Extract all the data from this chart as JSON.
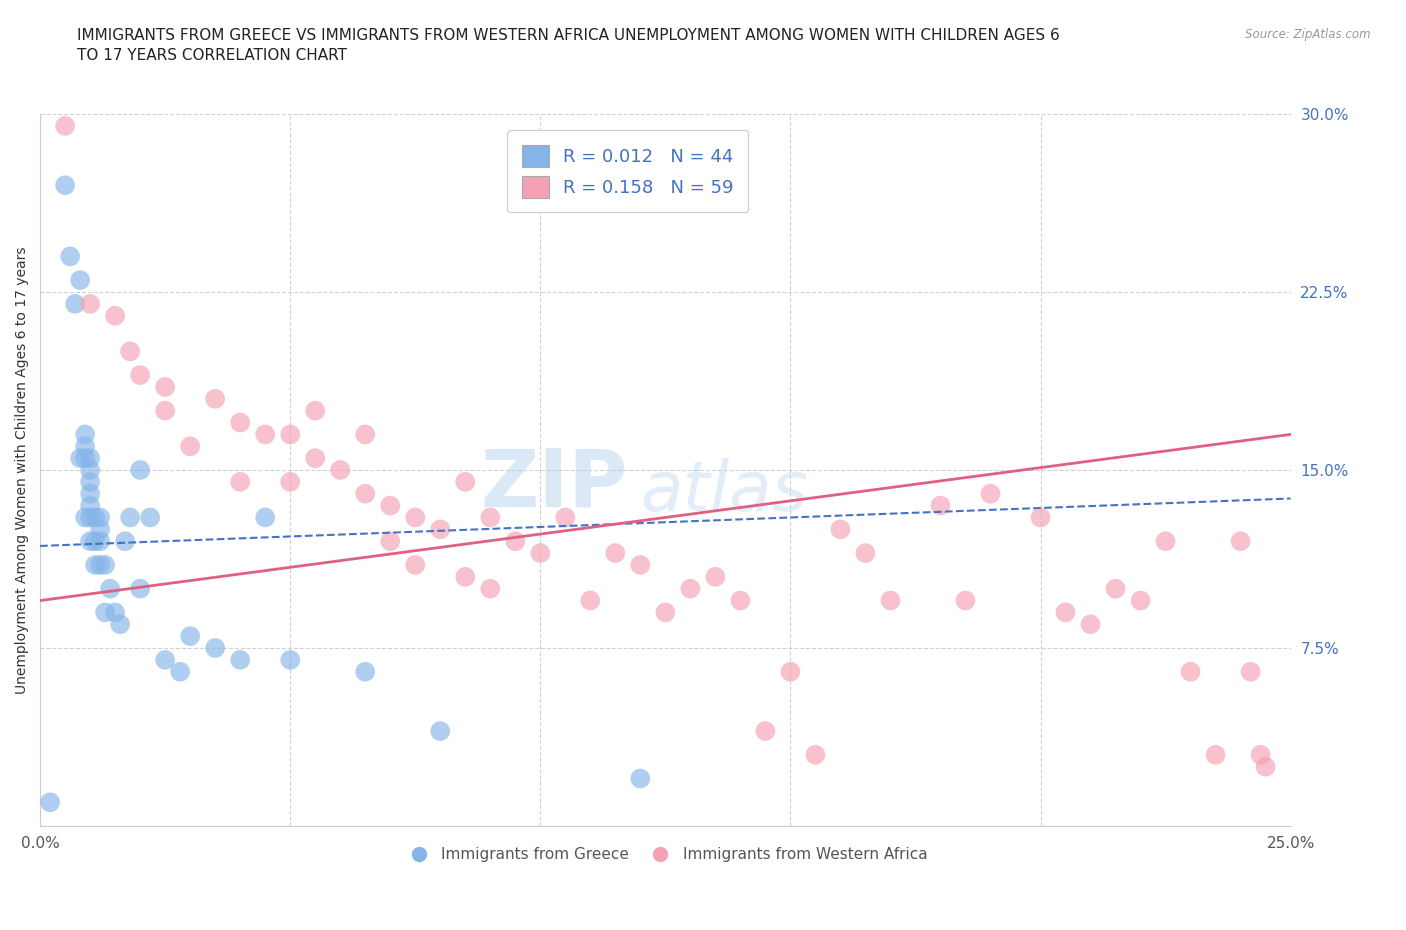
{
  "title": "IMMIGRANTS FROM GREECE VS IMMIGRANTS FROM WESTERN AFRICA UNEMPLOYMENT AMONG WOMEN WITH CHILDREN AGES 6\nTO 17 YEARS CORRELATION CHART",
  "source": "Source: ZipAtlas.com",
  "ylabel": "Unemployment Among Women with Children Ages 6 to 17 years",
  "xlim": [
    0.0,
    0.25
  ],
  "ylim": [
    0.0,
    0.3
  ],
  "xticks": [
    0.0,
    0.05,
    0.1,
    0.15,
    0.2,
    0.25
  ],
  "yticks": [
    0.0,
    0.075,
    0.15,
    0.225,
    0.3
  ],
  "greece_color": "#85b4e8",
  "western_africa_color": "#f4a0b5",
  "greece_line_color": "#4472c4",
  "western_africa_line_color": "#e06080",
  "legend_text_color": "#4472c4",
  "background_color": "#ffffff",
  "grid_color": "#cccccc",
  "title_fontsize": 11,
  "axis_label_fontsize": 10,
  "tick_fontsize": 11,
  "legend_fontsize": 13,
  "greece_scatter_x": [
    0.002,
    0.005,
    0.006,
    0.007,
    0.008,
    0.008,
    0.009,
    0.009,
    0.009,
    0.009,
    0.01,
    0.01,
    0.01,
    0.01,
    0.01,
    0.01,
    0.01,
    0.011,
    0.011,
    0.011,
    0.012,
    0.012,
    0.012,
    0.012,
    0.013,
    0.013,
    0.014,
    0.015,
    0.016,
    0.017,
    0.018,
    0.02,
    0.02,
    0.022,
    0.025,
    0.028,
    0.03,
    0.035,
    0.04,
    0.045,
    0.05,
    0.065,
    0.08,
    0.12
  ],
  "greece_scatter_y": [
    0.01,
    0.27,
    0.24,
    0.22,
    0.23,
    0.155,
    0.13,
    0.155,
    0.16,
    0.165,
    0.12,
    0.13,
    0.135,
    0.14,
    0.145,
    0.15,
    0.155,
    0.11,
    0.12,
    0.13,
    0.11,
    0.12,
    0.125,
    0.13,
    0.09,
    0.11,
    0.1,
    0.09,
    0.085,
    0.12,
    0.13,
    0.1,
    0.15,
    0.13,
    0.07,
    0.065,
    0.08,
    0.075,
    0.07,
    0.13,
    0.07,
    0.065,
    0.04,
    0.02
  ],
  "western_africa_scatter_x": [
    0.005,
    0.01,
    0.015,
    0.018,
    0.02,
    0.025,
    0.025,
    0.03,
    0.035,
    0.04,
    0.04,
    0.045,
    0.05,
    0.05,
    0.055,
    0.055,
    0.06,
    0.065,
    0.065,
    0.07,
    0.07,
    0.075,
    0.075,
    0.08,
    0.085,
    0.085,
    0.09,
    0.09,
    0.095,
    0.1,
    0.105,
    0.11,
    0.115,
    0.12,
    0.125,
    0.13,
    0.135,
    0.14,
    0.145,
    0.15,
    0.155,
    0.16,
    0.165,
    0.17,
    0.18,
    0.185,
    0.19,
    0.2,
    0.205,
    0.21,
    0.215,
    0.22,
    0.225,
    0.23,
    0.235,
    0.24,
    0.242,
    0.244,
    0.245
  ],
  "western_africa_scatter_y": [
    0.295,
    0.22,
    0.215,
    0.2,
    0.19,
    0.175,
    0.185,
    0.16,
    0.18,
    0.17,
    0.145,
    0.165,
    0.165,
    0.145,
    0.175,
    0.155,
    0.15,
    0.165,
    0.14,
    0.135,
    0.12,
    0.13,
    0.11,
    0.125,
    0.145,
    0.105,
    0.13,
    0.1,
    0.12,
    0.115,
    0.13,
    0.095,
    0.115,
    0.11,
    0.09,
    0.1,
    0.105,
    0.095,
    0.04,
    0.065,
    0.03,
    0.125,
    0.115,
    0.095,
    0.135,
    0.095,
    0.14,
    0.13,
    0.09,
    0.085,
    0.1,
    0.095,
    0.12,
    0.065,
    0.03,
    0.12,
    0.065,
    0.03,
    0.025
  ]
}
